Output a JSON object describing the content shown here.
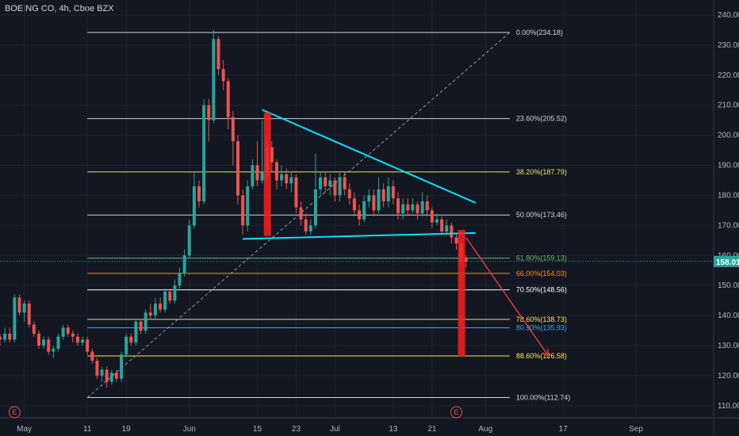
{
  "header": {
    "title": "BOEING CO, 4h, Cboe BZX"
  },
  "colors": {
    "bg": "#131722",
    "up": "#26a69a",
    "down": "#ef5350",
    "grid": "#1f2330",
    "text": "#b2b5be",
    "cyan": "#00e5ff",
    "red": "#ff1f1f"
  },
  "last_price": {
    "label": "158.01",
    "value": 158.01,
    "color": "#26a69a"
  },
  "chart_data": {
    "type": "candlestick",
    "symbol": "BOEING CO",
    "interval": "4h",
    "exchange": "Cboe BZX",
    "y_ticks": [
      "240.00",
      "230.00",
      "220.00",
      "210.00",
      "200.00",
      "190.00",
      "180.00",
      "170.00",
      "160.00",
      "150.00",
      "140.00",
      "130.00",
      "120.00",
      "110.00"
    ],
    "y_tick_values": [
      240,
      230,
      220,
      210,
      200,
      190,
      180,
      170,
      160,
      150,
      140,
      130,
      120,
      110
    ],
    "y_range": [
      106,
      245
    ],
    "x_labels": [
      "May",
      "11",
      "19",
      "Jun",
      "15",
      "23",
      "Jul",
      "13",
      "21",
      "Aug",
      "17",
      "Sep"
    ],
    "x_label_days": [
      -2,
      11,
      19,
      32,
      46,
      54,
      62,
      74,
      82,
      93,
      109,
      124
    ],
    "x_range": [
      -7,
      140
    ],
    "fib_levels": [
      {
        "label": "0.00%(234.18)",
        "value": 234.18,
        "color": "#d1d4dc"
      },
      {
        "label": "23.60%(205.52)",
        "value": 205.52,
        "color": "#d1d4dc"
      },
      {
        "label": "38.20%(187.79)",
        "value": 187.79,
        "color": "#e6e66b"
      },
      {
        "label": "50.00%(173.46)",
        "value": 173.46,
        "color": "#d1d4dc"
      },
      {
        "label": "61.80%(159.13)",
        "value": 159.13,
        "color": "#66bb6a"
      },
      {
        "label": "66.00%(154.03)",
        "value": 154.03,
        "color": "#ff9800"
      },
      {
        "label": "70.50%(148.56)",
        "value": 148.56,
        "color": "#ffffff"
      },
      {
        "label": "78.60%(138.73)",
        "value": 138.73,
        "color": "#ffe066"
      },
      {
        "label": "80.90%(135.93)",
        "value": 135.93,
        "color": "#42a5f5"
      },
      {
        "label": "88.60%(126.58)",
        "value": 126.58,
        "color": "#ffeb3b"
      },
      {
        "label": "100.00%(112.74)",
        "value": 112.74,
        "color": "#d1d4dc"
      }
    ],
    "fib_x_range": [
      11,
      98
    ],
    "diagonal": {
      "from": [
        11,
        112.74
      ],
      "to": [
        98,
        234.18
      ]
    },
    "triangle_upper": {
      "from": [
        47,
        208.5
      ],
      "to": [
        91,
        177.5
      ]
    },
    "triangle_lower": {
      "from": [
        43,
        165.5
      ],
      "to": [
        91,
        167.5
      ]
    },
    "red_bars": [
      {
        "x": 48,
        "top": 207.5,
        "bottom": 166.5
      },
      {
        "x": 88,
        "top": 168.5,
        "bottom": 126.5
      }
    ],
    "projection": {
      "from": [
        89,
        166
      ],
      "to": [
        106,
        126.5
      ]
    },
    "earnings_days": [
      -4,
      87
    ],
    "earnings_label": "E",
    "candles": [
      [
        -7,
        133,
        132,
        134,
        130
      ],
      [
        -6,
        132,
        134,
        136,
        131
      ],
      [
        -5,
        134,
        132,
        136,
        131
      ],
      [
        -4,
        132,
        146,
        147,
        131
      ],
      [
        -3,
        146,
        141,
        147,
        140
      ],
      [
        -2,
        141,
        144,
        145,
        138
      ],
      [
        -1,
        144,
        137,
        145,
        136
      ],
      [
        0,
        137,
        134,
        138,
        133
      ],
      [
        1,
        134,
        130,
        135,
        129
      ],
      [
        2,
        130,
        132,
        133,
        129
      ],
      [
        3,
        132,
        128,
        133,
        127
      ],
      [
        4,
        128,
        129,
        130,
        126
      ],
      [
        5,
        129,
        133,
        134,
        128
      ],
      [
        6,
        133,
        136,
        137,
        132
      ],
      [
        7,
        136,
        134,
        137,
        133
      ],
      [
        8,
        134,
        133,
        135,
        131
      ],
      [
        9,
        133,
        131,
        134,
        130
      ],
      [
        10,
        131,
        132,
        133,
        130
      ],
      [
        11,
        132,
        128,
        133,
        127
      ],
      [
        12,
        128,
        125,
        129,
        124
      ],
      [
        13,
        125,
        120,
        126,
        119
      ],
      [
        14,
        120,
        122,
        123,
        118
      ],
      [
        15,
        122,
        118,
        123,
        116
      ],
      [
        16,
        118,
        121,
        122,
        117
      ],
      [
        17,
        121,
        119,
        122,
        118
      ],
      [
        18,
        119,
        127,
        128,
        118
      ],
      [
        19,
        127,
        133,
        134,
        126
      ],
      [
        20,
        133,
        131,
        134,
        130
      ],
      [
        21,
        131,
        138,
        139,
        130
      ],
      [
        22,
        138,
        135,
        139,
        134
      ],
      [
        23,
        135,
        141,
        142,
        134
      ],
      [
        24,
        141,
        140,
        144,
        139
      ],
      [
        25,
        140,
        144,
        146,
        139
      ],
      [
        26,
        144,
        142,
        146,
        141
      ],
      [
        27,
        142,
        148,
        149,
        141
      ],
      [
        28,
        148,
        145,
        149,
        144
      ],
      [
        29,
        145,
        150,
        152,
        144
      ],
      [
        30,
        150,
        154,
        156,
        149
      ],
      [
        31,
        154,
        160,
        162,
        153
      ],
      [
        32,
        160,
        170,
        172,
        159
      ],
      [
        33,
        170,
        183,
        188,
        169
      ],
      [
        34,
        183,
        178,
        185,
        176
      ],
      [
        35,
        178,
        210,
        212,
        177
      ],
      [
        36,
        210,
        205,
        212,
        198
      ],
      [
        37,
        205,
        232,
        235,
        204
      ],
      [
        38,
        232,
        222,
        233,
        220
      ],
      [
        39,
        222,
        218,
        225,
        215
      ],
      [
        40,
        218,
        206,
        219,
        202
      ],
      [
        41,
        206,
        198,
        208,
        190
      ],
      [
        42,
        198,
        180,
        200,
        177
      ],
      [
        43,
        180,
        170,
        182,
        167
      ],
      [
        44,
        170,
        183,
        185,
        168
      ],
      [
        45,
        183,
        190,
        192,
        182
      ],
      [
        46,
        190,
        185,
        198,
        183
      ],
      [
        47,
        185,
        188,
        205,
        184
      ],
      [
        48,
        188,
        196,
        200,
        186
      ],
      [
        49,
        196,
        191,
        198,
        188
      ],
      [
        50,
        191,
        185,
        192,
        182
      ],
      [
        51,
        185,
        187,
        190,
        183
      ],
      [
        52,
        187,
        184,
        189,
        182
      ],
      [
        53,
        184,
        186,
        188,
        181
      ],
      [
        54,
        186,
        176,
        187,
        174
      ],
      [
        55,
        176,
        172,
        178,
        170
      ],
      [
        56,
        172,
        168,
        174,
        167
      ],
      [
        57,
        168,
        170,
        172,
        167
      ],
      [
        58,
        170,
        182,
        194,
        169
      ],
      [
        59,
        182,
        186,
        188,
        180
      ],
      [
        60,
        186,
        183,
        188,
        181
      ],
      [
        61,
        183,
        185,
        187,
        180
      ],
      [
        62,
        185,
        180,
        186,
        178
      ],
      [
        63,
        180,
        186,
        188,
        178
      ],
      [
        64,
        186,
        182,
        188,
        180
      ],
      [
        65,
        182,
        179,
        184,
        177
      ],
      [
        66,
        179,
        175,
        181,
        173
      ],
      [
        67,
        175,
        172,
        177,
        170
      ],
      [
        68,
        172,
        178,
        180,
        171
      ],
      [
        69,
        178,
        180,
        182,
        176
      ],
      [
        70,
        180,
        175,
        182,
        173
      ],
      [
        71,
        175,
        182,
        186,
        174
      ],
      [
        72,
        182,
        178,
        184,
        176
      ],
      [
        73,
        178,
        183,
        186,
        176
      ],
      [
        74,
        183,
        179,
        185,
        177
      ],
      [
        75,
        179,
        174,
        181,
        172
      ],
      [
        76,
        174,
        177,
        179,
        172
      ],
      [
        77,
        177,
        175,
        179,
        173
      ],
      [
        78,
        175,
        177,
        179,
        174
      ],
      [
        79,
        177,
        174,
        178,
        172
      ],
      [
        80,
        174,
        178,
        181,
        173
      ],
      [
        81,
        178,
        175,
        180,
        173
      ],
      [
        82,
        175,
        171,
        176,
        169
      ],
      [
        83,
        171,
        172,
        174,
        170
      ],
      [
        84,
        172,
        168,
        173,
        167
      ],
      [
        85,
        168,
        170,
        172,
        167
      ],
      [
        86,
        170,
        166,
        171,
        164
      ],
      [
        87,
        166,
        164,
        167,
        162
      ],
      [
        88,
        164,
        159,
        165,
        157
      ],
      [
        89,
        159,
        158,
        160,
        156
      ]
    ]
  }
}
